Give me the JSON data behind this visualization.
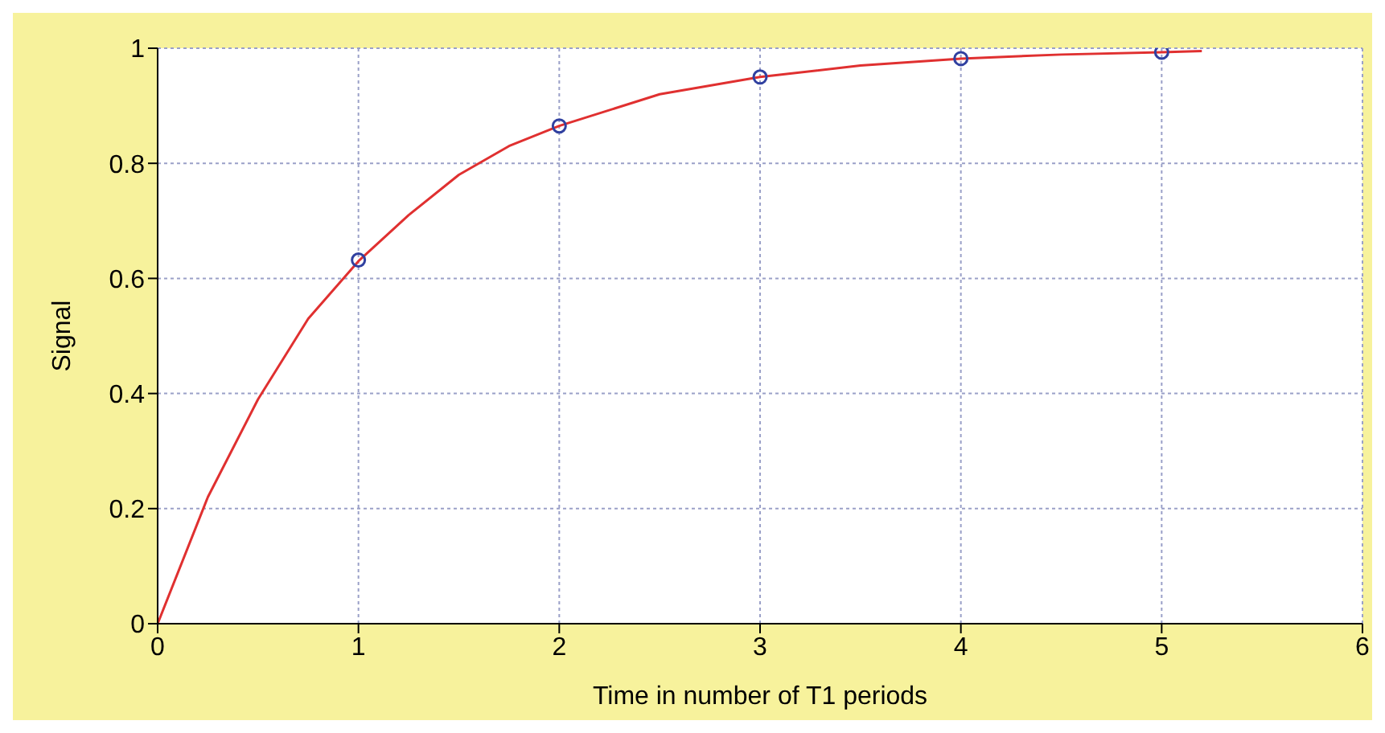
{
  "chart_data": {
    "type": "line",
    "xlabel": "Time in number of T1 periods",
    "ylabel": "Signal",
    "xlim": [
      0,
      6
    ],
    "ylim": [
      0,
      1
    ],
    "xticks": [
      0,
      1,
      2,
      3,
      4,
      5,
      6
    ],
    "yticks": [
      0,
      0.2,
      0.4,
      0.6,
      0.8,
      1
    ],
    "grid": true,
    "series": [
      {
        "color": "#e03030",
        "marker": "none",
        "line_style": "solid",
        "x": [
          0,
          0.25,
          0.5,
          0.75,
          1,
          1.25,
          1.5,
          1.75,
          2,
          2.5,
          3,
          3.5,
          4,
          4.5,
          5,
          5.2
        ],
        "values": [
          0,
          0.22,
          0.39,
          0.53,
          0.63,
          0.71,
          0.78,
          0.83,
          0.865,
          0.92,
          0.95,
          0.97,
          0.982,
          0.989,
          0.993,
          0.995
        ]
      },
      {
        "type": "scatter",
        "color": "#3040a0",
        "marker": "circle",
        "x": [
          1,
          2,
          3,
          4,
          5
        ],
        "values": [
          0.632,
          0.865,
          0.95,
          0.982,
          0.993
        ]
      }
    ]
  }
}
